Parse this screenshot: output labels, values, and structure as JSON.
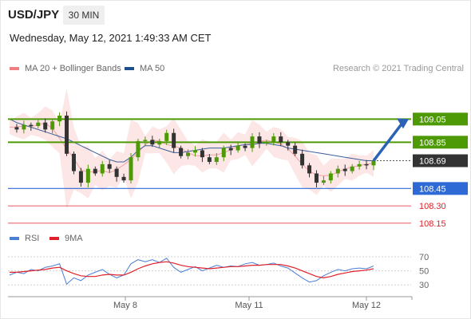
{
  "header": {
    "symbol": "USD/JPY",
    "timeframe": "30 MIN",
    "datetime": "Wednesday, May 12, 2021 1:49:33 AM CET",
    "copyright": "Research © 2021 Trading Central"
  },
  "legend": {
    "ma20": {
      "label": "MA 20 + Bollinger Bands",
      "color": "#f08080"
    },
    "ma50": {
      "label": "MA 50",
      "color": "#1f4e8c"
    },
    "rsi": {
      "label": "RSI",
      "color": "#4a7fd6"
    },
    "ma9": {
      "label": "9MA",
      "color": "#e0202a"
    }
  },
  "chart_data": [
    {
      "type": "candlestick",
      "x_labels": [
        "May 8",
        "May 11",
        "May 12"
      ],
      "ylim": [
        108.08,
        109.39
      ],
      "levels": [
        {
          "label": "109.05",
          "value": 109.05,
          "role": "resistance",
          "color": "#4e9a06"
        },
        {
          "label": "108.85",
          "value": 108.85,
          "role": "resistance",
          "color": "#4e9a06"
        },
        {
          "label": "108.69",
          "value": 108.69,
          "role": "last price",
          "color": "#333333"
        },
        {
          "label": "108.45",
          "value": 108.45,
          "role": "pivot",
          "color": "#2d6ad6"
        },
        {
          "label": "108.30",
          "value": 108.3,
          "role": "support",
          "color": "#e0202a"
        },
        {
          "label": "108.15",
          "value": 108.15,
          "role": "support",
          "color": "#e0202a"
        }
      ],
      "price_path": [
        108.98,
        108.96,
        109.0,
        108.99,
        109.02,
        108.96,
        109.03,
        109.08,
        108.75,
        108.6,
        108.5,
        108.62,
        108.58,
        108.66,
        108.62,
        108.55,
        108.52,
        108.72,
        108.86,
        108.87,
        108.83,
        108.86,
        108.93,
        108.8,
        108.73,
        108.76,
        108.78,
        108.72,
        108.68,
        108.72,
        108.8,
        108.78,
        108.82,
        108.8,
        108.9,
        108.84,
        108.85,
        108.9,
        108.85,
        108.82,
        108.75,
        108.65,
        108.58,
        108.5,
        108.52,
        108.58,
        108.62,
        108.6,
        108.64,
        108.66,
        108.65,
        108.69
      ],
      "ma50_path": [
        109.05,
        109.02,
        109.0,
        108.98,
        108.96,
        108.94,
        108.92,
        108.9,
        108.88,
        108.85,
        108.82,
        108.79,
        108.76,
        108.73,
        108.7,
        108.68,
        108.68,
        108.72,
        108.78,
        108.82,
        108.82,
        108.8,
        108.78,
        108.76,
        108.76,
        108.77,
        108.78,
        108.79,
        108.8,
        108.8,
        108.8,
        108.81,
        108.82,
        108.83,
        108.83,
        108.84,
        108.84,
        108.83,
        108.82,
        108.8,
        108.79,
        108.78,
        108.77,
        108.76,
        108.75,
        108.74,
        108.73,
        108.72,
        108.71,
        108.7,
        108.69,
        108.69
      ],
      "forecast": {
        "from": 108.69,
        "to": 109.05
      }
    },
    {
      "type": "line",
      "title": "RSI",
      "ylim": [
        20,
        78
      ],
      "y_ticks": [
        70,
        50,
        30
      ],
      "series": [
        {
          "name": "RSI",
          "values": [
            44,
            48,
            46,
            52,
            50,
            55,
            57,
            60,
            31,
            40,
            36,
            44,
            48,
            52,
            45,
            40,
            44,
            60,
            66,
            63,
            66,
            62,
            68,
            55,
            48,
            52,
            56,
            50,
            54,
            58,
            55,
            57,
            56,
            60,
            62,
            58,
            59,
            61,
            57,
            54,
            47,
            40,
            34,
            36,
            43,
            48,
            52,
            50,
            53,
            54,
            53,
            57
          ]
        },
        {
          "name": "9MA",
          "values": [
            48,
            48,
            49,
            50,
            51,
            52,
            54,
            55,
            50,
            46,
            43,
            42,
            42,
            44,
            45,
            44,
            44,
            48,
            53,
            57,
            60,
            62,
            63,
            61,
            58,
            56,
            55,
            54,
            53,
            54,
            55,
            56,
            56,
            57,
            58,
            58,
            59,
            59,
            59,
            57,
            54,
            50,
            46,
            42,
            40,
            42,
            45,
            47,
            49,
            50,
            51,
            53
          ]
        }
      ]
    }
  ]
}
